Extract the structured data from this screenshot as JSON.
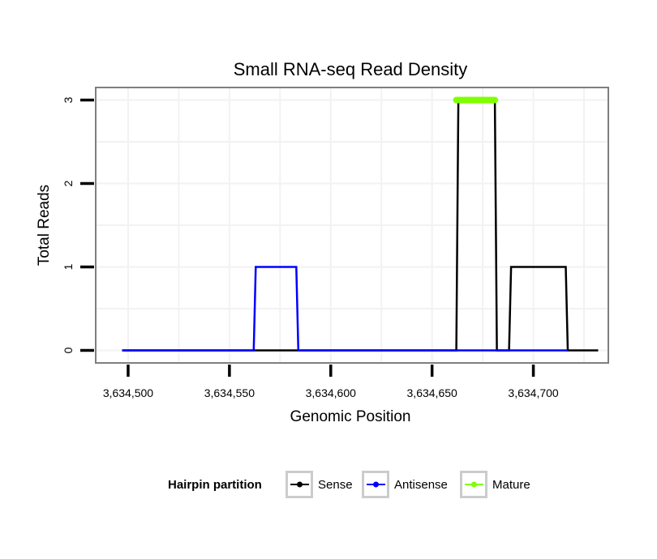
{
  "chart_data": {
    "type": "line",
    "title": "Small RNA-seq Read Density",
    "xlabel": "Genomic Position",
    "ylabel": "Total Reads",
    "xlim": [
      3634484,
      3634737
    ],
    "ylim": [
      -0.15,
      3.15
    ],
    "x_ticks": [
      3634500,
      3634550,
      3634600,
      3634650,
      3634700
    ],
    "x_tick_labels": [
      "3,634,500",
      "3,634,550",
      "3,634,600",
      "3,634,650",
      "3,634,700"
    ],
    "y_ticks": [
      0,
      1,
      2,
      3
    ],
    "y_tick_labels": [
      "0",
      "1",
      "2",
      "3"
    ],
    "grid": true,
    "legend": {
      "title": "Hairpin partition",
      "position": "bottom",
      "entries": [
        "Sense",
        "Antisense",
        "Mature"
      ]
    },
    "series": [
      {
        "name": "Sense",
        "color": "#000000",
        "x": [
          3634497,
          3634662,
          3634663,
          3634681,
          3634682,
          3634688,
          3634689,
          3634716,
          3634717,
          3634732
        ],
        "y": [
          0,
          0,
          3,
          3,
          0,
          0,
          1,
          1,
          0,
          0
        ]
      },
      {
        "name": "Antisense",
        "color": "#0000ff",
        "x": [
          3634497,
          3634562,
          3634563,
          3634583,
          3634584,
          3634717
        ],
        "y": [
          0,
          0,
          1,
          1,
          0,
          0
        ]
      },
      {
        "name": "Mature",
        "color": "#7fff00",
        "x": [
          3634662,
          3634681
        ],
        "y": [
          3,
          3
        ]
      }
    ]
  }
}
